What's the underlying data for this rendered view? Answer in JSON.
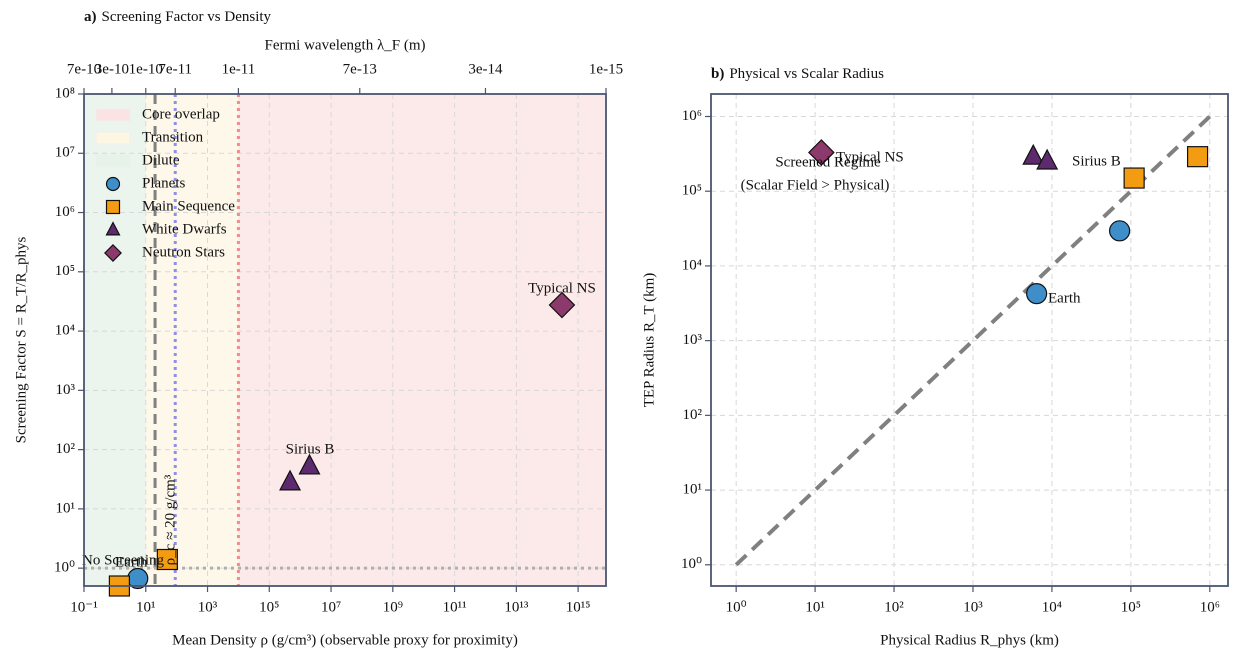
{
  "chart_data": [
    {
      "type": "scatter",
      "panel_label": "a)",
      "title": "Screening Factor vs Density",
      "x_label": "Mean Density ρ (g/cm³)  (observable proxy for proximity)",
      "y_label": "Screening Factor S = R_T/R_phys",
      "x2_label": "Fermi wavelength λ_F (m)",
      "xscale": "log",
      "yscale": "log",
      "grid": true,
      "legend": "upper left",
      "xlim": [
        0.1,
        8000000000000000.0
      ],
      "ylim": [
        0.5,
        100000000
      ],
      "xticks": [
        {
          "value": 0.1,
          "label": "10⁻¹"
        },
        {
          "value": 10,
          "label": "10¹"
        },
        {
          "value": 1000,
          "label": "10³"
        },
        {
          "value": 100000,
          "label": "10⁵"
        },
        {
          "value": 10000000,
          "label": "10⁷"
        },
        {
          "value": 1000000000,
          "label": "10⁹"
        },
        {
          "value": 100000000000,
          "label": "10¹¹"
        },
        {
          "value": 10000000000000,
          "label": "10¹³"
        },
        {
          "value": 1000000000000000,
          "label": "10¹⁵"
        }
      ],
      "yticks": [
        {
          "value": 1,
          "label": "10⁰"
        },
        {
          "value": 10,
          "label": "10¹"
        },
        {
          "value": 100,
          "label": "10²"
        },
        {
          "value": 1000,
          "label": "10³"
        },
        {
          "value": 10000,
          "label": "10⁴"
        },
        {
          "value": 100000,
          "label": "10⁵"
        },
        {
          "value": 1000000,
          "label": "10⁶"
        },
        {
          "value": 10000000,
          "label": "10⁷"
        },
        {
          "value": 100000000,
          "label": "10⁸"
        }
      ],
      "x2ticks": [
        {
          "value": 0.1,
          "label": "7e-10"
        },
        {
          "value": 0.8,
          "label": "3e-10"
        },
        {
          "value": 10,
          "label": "1e-10"
        },
        {
          "value": 90,
          "label": "7e-11"
        },
        {
          "value": 10000,
          "label": "1e-11"
        },
        {
          "value": 85000000,
          "label": "7e-13"
        },
        {
          "value": 1000000000000,
          "label": "3e-14"
        },
        {
          "value": 8000000000000000.0,
          "label": "1e-15"
        }
      ],
      "regions": [
        {
          "name": "Core overlap",
          "xlim": [
            10000,
            8000000000000000.0
          ],
          "color": "#fbe3e3"
        },
        {
          "name": "Transition",
          "xlim": [
            10,
            10000
          ],
          "color": "#fdf6e3"
        },
        {
          "name": "Dilute",
          "xlim": [
            0.1,
            10
          ],
          "color": "#e7f2e9"
        }
      ],
      "vlines": [
        {
          "x": 20,
          "color": "#808080",
          "dash": "10 6",
          "width": 3
        },
        {
          "x": 90,
          "color": "#8f8fe8",
          "dash": "3 4",
          "width": 3
        },
        {
          "x": 10000,
          "color": "#f28b8b",
          "dash": "3 4",
          "width": 3
        }
      ],
      "hlines": [
        {
          "y": 1,
          "color": "#b0b0b0",
          "dash": "3 4",
          "width": 3
        }
      ],
      "series": [
        {
          "name": "Planets",
          "color": "#3d8ec9",
          "marker": "circle",
          "x": [
            5.5
          ],
          "values": [
            0.67
          ]
        },
        {
          "name": "Main Sequence",
          "color": "#f39c12",
          "marker": "square",
          "x": [
            1.4,
            50
          ],
          "values": [
            0.5,
            1.4
          ]
        },
        {
          "name": "White Dwarfs",
          "color": "#5e2a6e",
          "marker": "triangle",
          "x": [
            470000,
            2000000
          ],
          "values": [
            28,
            52
          ]
        },
        {
          "name": "Neutron Stars",
          "color": "#8b3a6b",
          "marker": "diamond",
          "x": [
            300000000000000
          ],
          "values": [
            27500
          ]
        }
      ],
      "annotations": [
        "Typical NS",
        "Sirius B",
        "No Screening",
        "Earth",
        "ρ_c ≈ 20 g/cm³"
      ]
    },
    {
      "type": "scatter",
      "panel_label": "b)",
      "title": "Physical vs Scalar Radius",
      "x_label": "Physical Radius R_phys (km)",
      "y_label": "TEP Radius R_T (km)",
      "xscale": "log",
      "yscale": "log",
      "grid": true,
      "xlim": [
        0.48,
        1700000
      ],
      "ylim": [
        0.52,
        2000000
      ],
      "xticks": [
        {
          "value": 1,
          "label": "10⁰"
        },
        {
          "value": 10,
          "label": "10¹"
        },
        {
          "value": 100,
          "label": "10²"
        },
        {
          "value": 1000,
          "label": "10³"
        },
        {
          "value": 10000,
          "label": "10⁴"
        },
        {
          "value": 100000,
          "label": "10⁵"
        },
        {
          "value": 1000000,
          "label": "10⁶"
        }
      ],
      "yticks": [
        {
          "value": 1,
          "label": "10⁰"
        },
        {
          "value": 10,
          "label": "10¹"
        },
        {
          "value": 100,
          "label": "10²"
        },
        {
          "value": 1000,
          "label": "10³"
        },
        {
          "value": 10000,
          "label": "10⁴"
        },
        {
          "value": 100000,
          "label": "10⁵"
        },
        {
          "value": 1000000,
          "label": "10⁶"
        }
      ],
      "lines": [
        {
          "color": "#808080",
          "dash": "14 8",
          "width": 4,
          "x": [
            1,
            1000000
          ],
          "values": [
            1,
            1000000
          ]
        }
      ],
      "series": [
        {
          "color": "#3d8ec9",
          "marker": "circle",
          "x": [
            6400,
            72000
          ],
          "values": [
            4260,
            29500
          ]
        },
        {
          "color": "#f39c12",
          "marker": "square",
          "x": [
            110000,
            700000
          ],
          "values": [
            150000,
            290000
          ]
        },
        {
          "color": "#5e2a6e",
          "marker": "triangle",
          "x": [
            5800,
            8700
          ],
          "values": [
            290000,
            250000
          ]
        },
        {
          "color": "#8b3a6b",
          "marker": "diamond",
          "x": [
            12
          ],
          "values": [
            330000
          ]
        }
      ],
      "annotations": [
        "Earth",
        "Sirius B",
        "Screened Regime",
        "(Scalar Field > Physical)",
        "Typical NS"
      ]
    }
  ]
}
